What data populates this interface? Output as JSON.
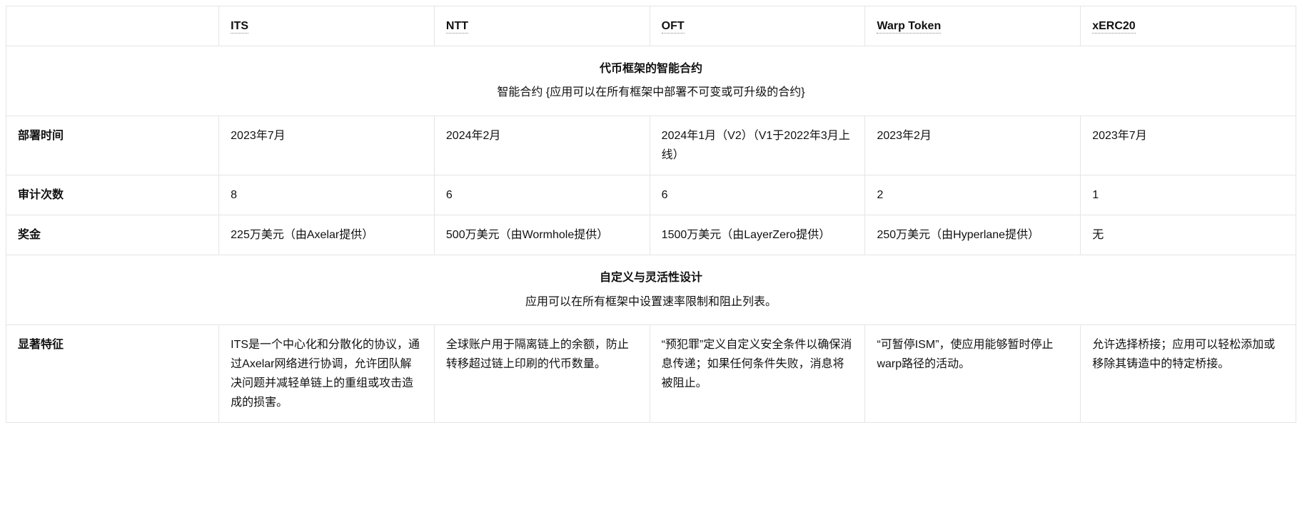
{
  "columns": [
    "ITS",
    "NTT",
    "OFT",
    "Warp Token",
    "xERC20"
  ],
  "section1": {
    "title": "代币框架的智能合约",
    "sub": "智能合约 {应用可以在所有框架中部署不可变或可升级的合约}"
  },
  "rows1": [
    {
      "label": "部署时间",
      "cells": [
        "2023年7月",
        "2024年2月",
        "2024年1月（V2）（V1于2022年3月上线）",
        "2023年2月",
        "2023年7月"
      ]
    },
    {
      "label": "审计次数",
      "cells": [
        "8",
        "6",
        "6",
        "2",
        "1"
      ]
    },
    {
      "label": "奖金",
      "cells": [
        "225万美元（由Axelar提供）",
        "500万美元（由Wormhole提供）",
        "1500万美元（由LayerZero提供）",
        "250万美元（由Hyperlane提供）",
        "无"
      ]
    }
  ],
  "section2": {
    "title": "自定义与灵活性设计",
    "sub": "应用可以在所有框架中设置速率限制和阻止列表。"
  },
  "rows2": [
    {
      "label": "显著特征",
      "cells": [
        "ITS是一个中心化和分散化的协议，通过Axelar网络进行协调，允许团队解决问题并减轻单链上的重组或攻击造成的损害。",
        "全球账户用于隔离链上的余额，防止转移超过链上印刷的代币数量。",
        "“预犯罪”定义自定义安全条件以确保消息传递；如果任何条件失败，消息将被阻止。",
        "“可暂停ISM”，使应用能够暂时停止warp路径的活动。",
        "允许选择桥接；应用可以轻松添加或移除其铸造中的特定桥接。"
      ]
    }
  ],
  "colors": {
    "border": "#e5e5e5",
    "text": "#111111",
    "bg": "#ffffff"
  }
}
